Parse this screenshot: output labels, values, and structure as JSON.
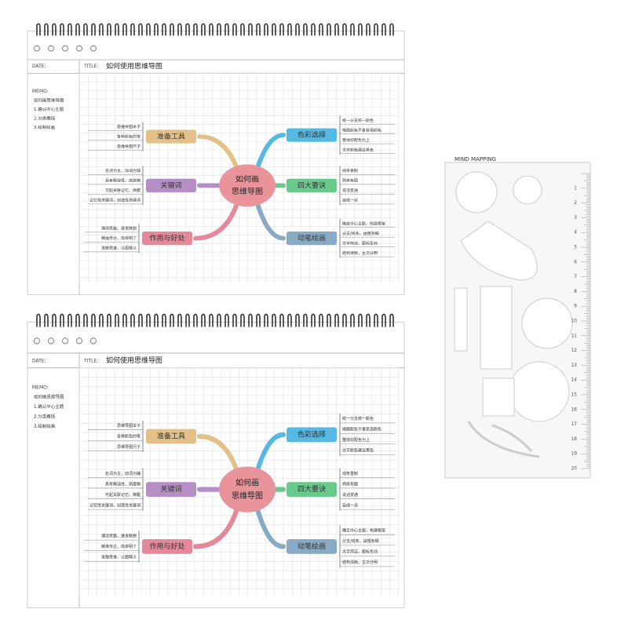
{
  "notebooks": [
    {
      "date_label": "DATE:",
      "title_label": "TITLE:",
      "title": "如何使用思维导图",
      "memo_label": "MEMO:",
      "memo": [
        "如何画思维导图",
        "1.确认中心主题",
        "2.分类概括",
        "3.绘制绘画"
      ],
      "center": [
        "如何画",
        "思维导图"
      ],
      "branches": [
        {
          "label": "准备工具",
          "color": "#e2c088",
          "leaves": [
            "思维导图本子",
            "各种颜色的笔",
            "思维导图尺子"
          ]
        },
        {
          "label": "关键词",
          "color": "#b68ec6",
          "leaves": [
            "名词为主，动词为辅",
            "具有概括性，高度精",
            "可起关联记忆，唤醒",
            "记忆性关键词，创造性关键词"
          ]
        },
        {
          "label": "作用与好处",
          "color": "#e5899a",
          "leaves": [
            "理清思路，激发联想",
            "精准传达，简单明了",
            "发散思维，以图释义"
          ]
        },
        {
          "label": "色彩选择",
          "color": "#55b9e3",
          "leaves": [
            "统一分支统一颜色",
            "暗图颜色不重复用颜色",
            "整体好配色为上",
            "文字颜色建议黑色"
          ]
        },
        {
          "label": "四大要诀",
          "color": "#69c98a",
          "leaves": [
            "线条重制",
            "熟练有图",
            "说话变通",
            "自成一派"
          ]
        },
        {
          "label": "动笔绘画",
          "color": "#87abc4",
          "leaves": [
            "确定中心主题，构建框架",
            "分支/线条，由粗到细",
            "文字简洁，图标生动",
            "结构清晰，主次分明"
          ]
        }
      ]
    },
    {
      "date_label": "DATE:",
      "title_label": "TITLE:",
      "title": "如何使用思维导图",
      "memo_label": "MEMO:",
      "memo": [
        "如何画思维导图",
        "1.确认中心主题",
        "2.分类概括",
        "3.绘制绘画"
      ],
      "center": [
        "如何画",
        "思维导图"
      ],
      "branches": [
        {
          "label": "准备工具",
          "color": "#e2c088",
          "leaves": [
            "思维导图本子",
            "各种颜色的笔",
            "思维导图尺子"
          ]
        },
        {
          "label": "关键词",
          "color": "#b68ec6",
          "leaves": [
            "名词为主，动词为辅",
            "具有概括性，高度精",
            "可起关联记忆，唤醒",
            "记忆性关键词，创造性关键词"
          ]
        },
        {
          "label": "作用与好处",
          "color": "#e5899a",
          "leaves": [
            "理清思路，激发联想",
            "精准传达，简单明了",
            "发散思维，以图释义"
          ]
        },
        {
          "label": "色彩选择",
          "color": "#55b9e3",
          "leaves": [
            "统一分支统一颜色",
            "暗图颜色不重复用颜色",
            "整体好配色为上",
            "文字颜色建议黑色"
          ]
        },
        {
          "label": "四大要诀",
          "color": "#69c98a",
          "leaves": [
            "线条重制",
            "熟练有图",
            "说话变通",
            "自成一派"
          ]
        },
        {
          "label": "动笔绘画",
          "color": "#87abc4",
          "leaves": [
            "确定中心主题，构建框架",
            "分支/线条，由粗到细",
            "文字简洁，图标生动",
            "结构清晰，主次分明"
          ]
        }
      ]
    }
  ],
  "ruler": {
    "title": "MIND MAPPING",
    "scale": [
      1,
      2,
      3,
      4,
      5,
      6,
      7,
      8,
      9,
      10,
      11,
      12,
      13,
      14,
      15,
      16,
      17,
      18,
      19,
      20
    ]
  }
}
